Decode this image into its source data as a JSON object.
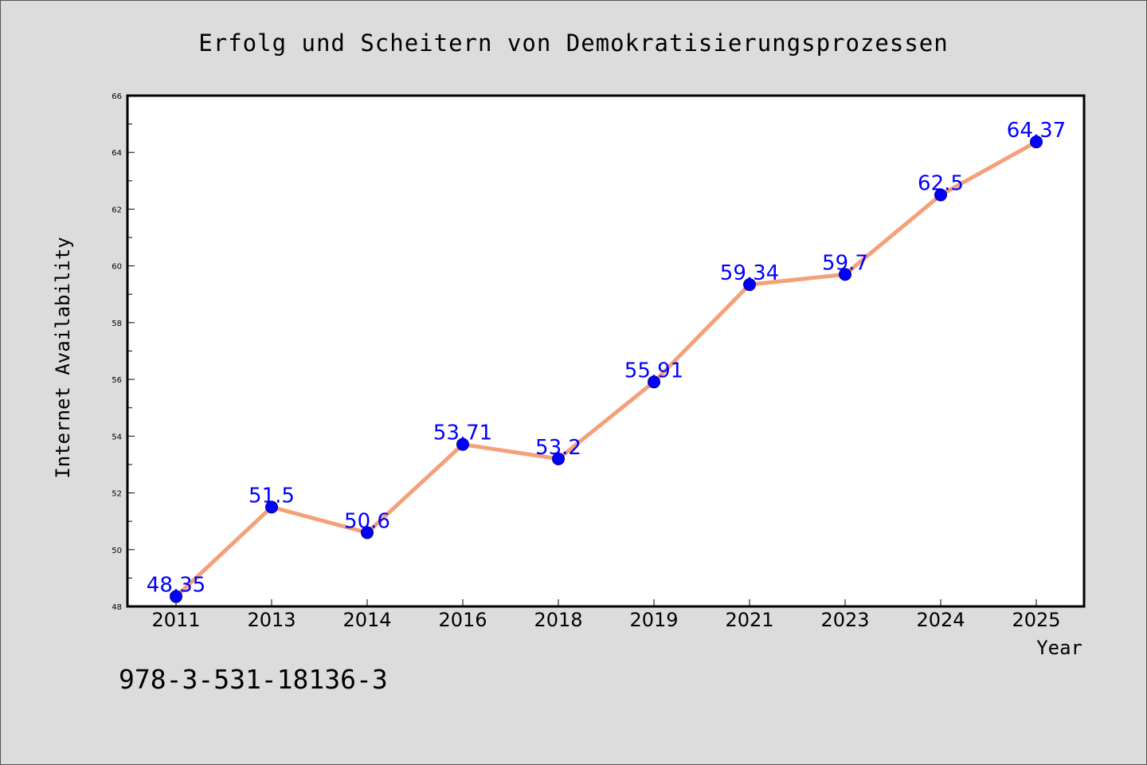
{
  "chart_data": {
    "type": "line",
    "title": "Erfolg und Scheitern von Demokratisierungsprozessen",
    "xlabel": "Year",
    "ylabel": "Internet Availability",
    "categories": [
      "2011",
      "2013",
      "2014",
      "2016",
      "2018",
      "2019",
      "2021",
      "2023",
      "2024",
      "2025"
    ],
    "series": [
      {
        "values": [
          48.35,
          51.5,
          50.6,
          53.71,
          53.2,
          55.91,
          59.34,
          59.7,
          62.5,
          64.37
        ]
      }
    ],
    "data_labels": [
      "48.35",
      "51.5",
      "50.6",
      "53.71",
      "53.2",
      "55.91",
      "59.34",
      "59.7",
      "62.5",
      "64.37"
    ],
    "ylim": [
      48,
      66
    ],
    "yticks": [
      48,
      50,
      52,
      54,
      56,
      58,
      60,
      62,
      64,
      66
    ],
    "grid": false,
    "colors": {
      "line": "#f4a07a",
      "marker": "#0000ff",
      "label": "#0000ff",
      "background": "#dcdcdc",
      "plot": "#ffffff"
    }
  },
  "footer": {
    "isbn": "978-3-531-18136-3"
  }
}
